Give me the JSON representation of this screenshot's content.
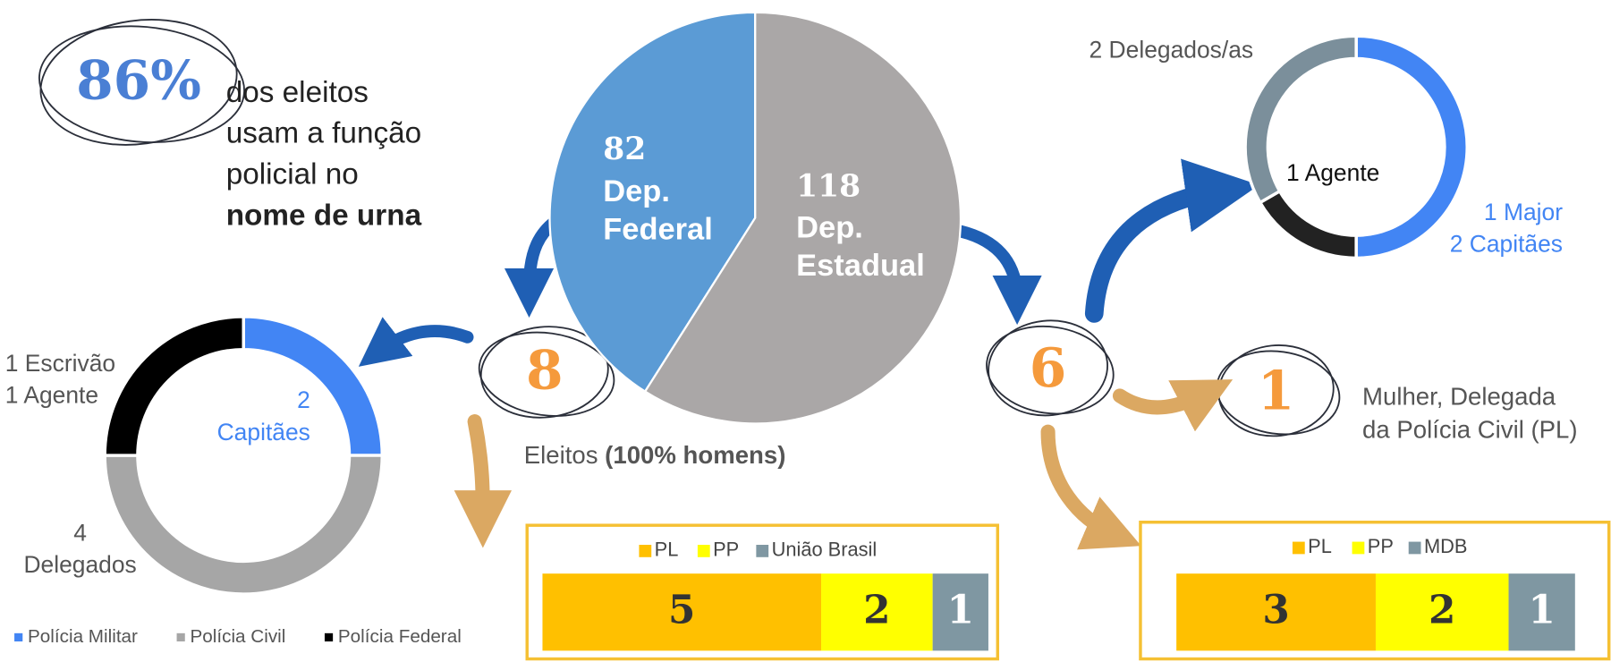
{
  "headline": {
    "stat": "86%",
    "text": "dos eleitos\nusam a função\npolicial no\n",
    "bold": "nome de urna"
  },
  "counts": {
    "federal": 8,
    "estadual": 6,
    "mulher": 1
  },
  "federal_note": {
    "text": "Eleitos ",
    "bold": "(100% homens)"
  },
  "mulher_note": "Mulher, Delegada\nda Polícia Civil (PL)",
  "chart_data": [
    {
      "type": "pie",
      "categories": [
        "Dep.\nFederal",
        "Dep.\nEstadual"
      ],
      "values": [
        82,
        118
      ],
      "colors": [
        "#5b9bd5",
        "#aaa7a7"
      ]
    },
    {
      "type": "donut",
      "categories": [
        "Polícia Militar",
        "Polícia Civil",
        "Polícia Federal"
      ],
      "values": [
        2,
        4,
        2
      ],
      "value_labels": [
        "2\nCapitães",
        "4\nDelegados",
        "1 Escrivão\n1 Agente"
      ],
      "colors": [
        "#4285f4",
        "#a6a6a6",
        "#000000"
      ],
      "legend": "bottom"
    },
    {
      "type": "donut",
      "values": [
        3,
        1,
        2
      ],
      "value_labels": [
        "1 Major\n2 Capitães",
        "1 Agente",
        "2 Delegados/as"
      ],
      "colors": [
        "#4285f4",
        "#222222",
        "#7b8f9b"
      ]
    },
    {
      "type": "stacked_bar",
      "series": [
        {
          "name": "PL",
          "color": "#ffc000",
          "values": [
            5
          ]
        },
        {
          "name": "PP",
          "color": "#ffff00",
          "values": [
            2
          ]
        },
        {
          "name": "União Brasil",
          "color": "#7f97a2",
          "values": [
            1
          ]
        }
      ],
      "legend": "top"
    },
    {
      "type": "stacked_bar",
      "series": [
        {
          "name": "PL",
          "color": "#ffc000",
          "values": [
            3
          ]
        },
        {
          "name": "PP",
          "color": "#ffff00",
          "values": [
            2
          ]
        },
        {
          "name": "MDB",
          "color": "#7f97a2",
          "values": [
            1
          ]
        }
      ],
      "legend": "top"
    }
  ]
}
